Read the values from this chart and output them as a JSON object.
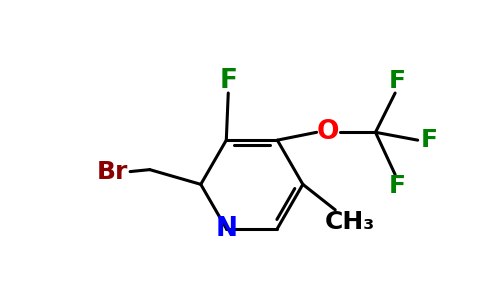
{
  "bg_color": "#ffffff",
  "bond_color": "#000000",
  "bond_width": 2.2,
  "ring_color": "#000000",
  "atom_colors": {
    "N": "#0000ff",
    "F": "#008000",
    "O": "#ff0000",
    "Br": "#8b0000",
    "C": "#000000"
  },
  "label_fontsize": 18
}
